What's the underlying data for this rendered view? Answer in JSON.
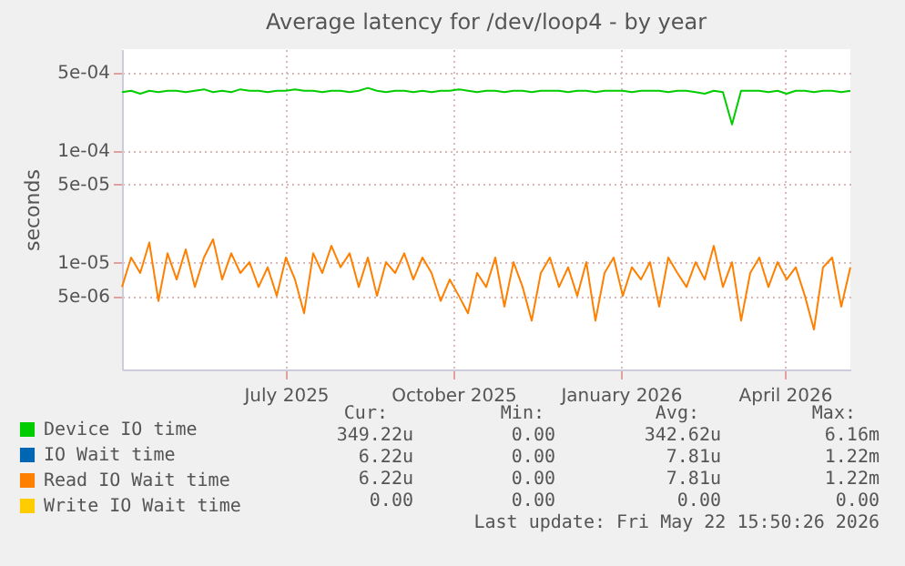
{
  "chart_data": {
    "type": "line",
    "title": "Average latency for /dev/loop4 - by year",
    "ylabel": "seconds",
    "x": [
      "2025-04-17",
      "2025-04-22",
      "2025-04-27",
      "2025-05-02",
      "2025-05-07",
      "2025-05-12",
      "2025-05-17",
      "2025-05-22",
      "2025-05-27",
      "2025-06-01",
      "2025-06-06",
      "2025-06-11",
      "2025-06-16",
      "2025-06-21",
      "2025-06-26",
      "2025-07-01",
      "2025-07-06",
      "2025-07-11",
      "2025-07-16",
      "2025-07-21",
      "2025-07-26",
      "2025-07-31",
      "2025-08-05",
      "2025-08-10",
      "2025-08-15",
      "2025-08-20",
      "2025-08-25",
      "2025-08-30",
      "2025-09-04",
      "2025-09-09",
      "2025-09-14",
      "2025-09-19",
      "2025-09-24",
      "2025-09-29",
      "2025-10-04",
      "2025-10-09",
      "2025-10-14",
      "2025-10-19",
      "2025-10-24",
      "2025-10-29",
      "2025-11-03",
      "2025-11-08",
      "2025-11-13",
      "2025-11-18",
      "2025-11-23",
      "2025-11-28",
      "2025-12-03",
      "2025-12-08",
      "2025-12-13",
      "2025-12-18",
      "2025-12-23",
      "2025-12-28",
      "2026-01-02",
      "2026-01-07",
      "2026-01-12",
      "2026-01-17",
      "2026-01-22",
      "2026-01-27",
      "2026-02-01",
      "2026-02-06",
      "2026-02-11",
      "2026-02-16",
      "2026-02-21",
      "2026-02-26",
      "2026-03-03",
      "2026-03-08",
      "2026-03-13",
      "2026-03-18",
      "2026-03-23",
      "2026-03-28",
      "2026-04-02",
      "2026-04-07",
      "2026-04-12",
      "2026-04-17",
      "2026-04-22",
      "2026-04-27",
      "2026-05-02",
      "2026-05-07",
      "2026-05-12",
      "2026-05-17",
      "2026-05-22"
    ],
    "series": [
      {
        "name": "Device IO time",
        "color": "#00cc00",
        "values": [
          0.00033,
          0.00034,
          0.00032,
          0.00034,
          0.00033,
          0.00034,
          0.00034,
          0.00033,
          0.00034,
          0.00035,
          0.00033,
          0.00034,
          0.00033,
          0.00035,
          0.00034,
          0.00034,
          0.00033,
          0.00034,
          0.00034,
          0.00035,
          0.00034,
          0.00034,
          0.00033,
          0.00034,
          0.00034,
          0.00033,
          0.00034,
          0.00036,
          0.00034,
          0.00033,
          0.00034,
          0.00034,
          0.00033,
          0.00034,
          0.00033,
          0.00034,
          0.00034,
          0.00035,
          0.00034,
          0.00033,
          0.00034,
          0.00034,
          0.00033,
          0.00034,
          0.00034,
          0.00033,
          0.00034,
          0.00034,
          0.00034,
          0.00033,
          0.00034,
          0.00034,
          0.00033,
          0.00034,
          0.00034,
          0.00034,
          0.00033,
          0.00034,
          0.00034,
          0.00034,
          0.00033,
          0.00034,
          0.00034,
          0.00033,
          0.00032,
          0.00034,
          0.00033,
          0.00017,
          0.00034,
          0.00034,
          0.00034,
          0.00033,
          0.00034,
          0.00032,
          0.00034,
          0.00034,
          0.00033,
          0.00034,
          0.00034,
          0.00033,
          0.00034
        ]
      },
      {
        "name": "IO Wait time",
        "color": "#0066b3",
        "values": [
          null,
          null,
          null,
          null,
          null,
          null,
          null,
          null,
          null,
          null,
          null,
          null,
          null,
          null,
          null,
          null,
          null,
          null,
          null,
          null,
          null,
          null,
          null,
          null,
          null,
          null,
          null,
          null,
          null,
          null,
          null,
          null,
          null,
          null,
          null,
          null,
          null,
          null,
          null,
          null,
          null,
          null,
          null,
          null,
          null,
          null,
          null,
          null,
          null,
          null,
          null,
          null,
          null,
          null,
          null,
          null,
          null,
          null,
          null,
          null,
          null,
          null,
          null,
          null,
          null,
          null,
          null,
          null,
          null,
          null,
          null,
          null,
          null,
          null,
          null,
          null,
          null,
          null,
          null,
          null,
          null
        ]
      },
      {
        "name": "Read IO Wait time",
        "color": "#ff8000",
        "values": [
          6e-06,
          1.1e-05,
          8e-06,
          1.5e-05,
          4.5e-06,
          1.2e-05,
          7e-06,
          1.3e-05,
          6e-06,
          1.1e-05,
          1.6e-05,
          7e-06,
          1.2e-05,
          8e-06,
          1e-05,
          6e-06,
          9e-06,
          5e-06,
          1.1e-05,
          7e-06,
          3.5e-06,
          1.2e-05,
          8e-06,
          1.4e-05,
          9e-06,
          1.2e-05,
          6e-06,
          1.1e-05,
          5e-06,
          1e-05,
          8e-06,
          1.2e-05,
          7e-06,
          1.1e-05,
          8e-06,
          4.5e-06,
          7e-06,
          5e-06,
          3.5e-06,
          8e-06,
          6e-06,
          1.1e-05,
          4e-06,
          1e-05,
          6e-06,
          3e-06,
          8e-06,
          1.1e-05,
          6e-06,
          9e-06,
          5e-06,
          1e-05,
          3e-06,
          8e-06,
          1.1e-05,
          5e-06,
          9e-06,
          7e-06,
          1e-05,
          4e-06,
          1.1e-05,
          8e-06,
          6e-06,
          1e-05,
          7e-06,
          1.4e-05,
          6e-06,
          1e-05,
          3e-06,
          8e-06,
          1.1e-05,
          6e-06,
          1e-05,
          7e-06,
          9e-06,
          5e-06,
          2.5e-06,
          9e-06,
          1.1e-05,
          4e-06,
          9e-06
        ]
      },
      {
        "name": "Write IO Wait time",
        "color": "#ffcc00",
        "values": [
          null,
          null,
          null,
          null,
          null,
          null,
          null,
          null,
          null,
          null,
          null,
          null,
          null,
          null,
          null,
          null,
          null,
          null,
          null,
          null,
          null,
          null,
          null,
          null,
          null,
          null,
          null,
          null,
          null,
          null,
          null,
          null,
          null,
          null,
          null,
          null,
          null,
          null,
          null,
          null,
          null,
          null,
          null,
          null,
          null,
          null,
          null,
          null,
          null,
          null,
          null,
          null,
          null,
          null,
          null,
          null,
          null,
          null,
          null,
          null,
          null,
          null,
          null,
          null,
          null,
          null,
          null,
          null,
          null,
          null,
          null,
          null,
          null,
          null,
          null,
          null,
          null,
          null,
          null,
          null,
          null
        ]
      }
    ],
    "xlim": [
      "2025-04-17",
      "2026-05-22"
    ],
    "xticks": [
      {
        "value": "2025-07-16",
        "label": "July 2025"
      },
      {
        "value": "2025-10-16",
        "label": "October 2025"
      },
      {
        "value": "2026-01-16",
        "label": "January 2026"
      },
      {
        "value": "2026-04-16",
        "label": "April 2026"
      }
    ],
    "ylim": [
      1.1e-06,
      0.0008
    ],
    "yticks": [
      {
        "value": 5e-06,
        "label": "5e-06"
      },
      {
        "value": 1e-05,
        "label": "1e-05"
      },
      {
        "value": 5e-05,
        "label": "5e-05"
      },
      {
        "value": 0.0001,
        "label": "1e-04"
      },
      {
        "value": 0.0005,
        "label": "5e-04"
      }
    ],
    "log": true,
    "grid": true,
    "legend": "bottom left",
    "marker": "none",
    "annotations": [
      "Cur:",
      "Min:",
      "Avg:",
      "Max:",
      "349.22u",
      "0.00",
      "342.62u",
      "6.16m",
      "6.22u",
      "0.00",
      "7.81u",
      "1.22m",
      "6.22u",
      "0.00",
      "7.81u",
      "1.22m",
      "0.00",
      "0.00",
      "0.00",
      "0.00",
      "Last update: Fri May 22 15:50:26 2026"
    ]
  }
}
